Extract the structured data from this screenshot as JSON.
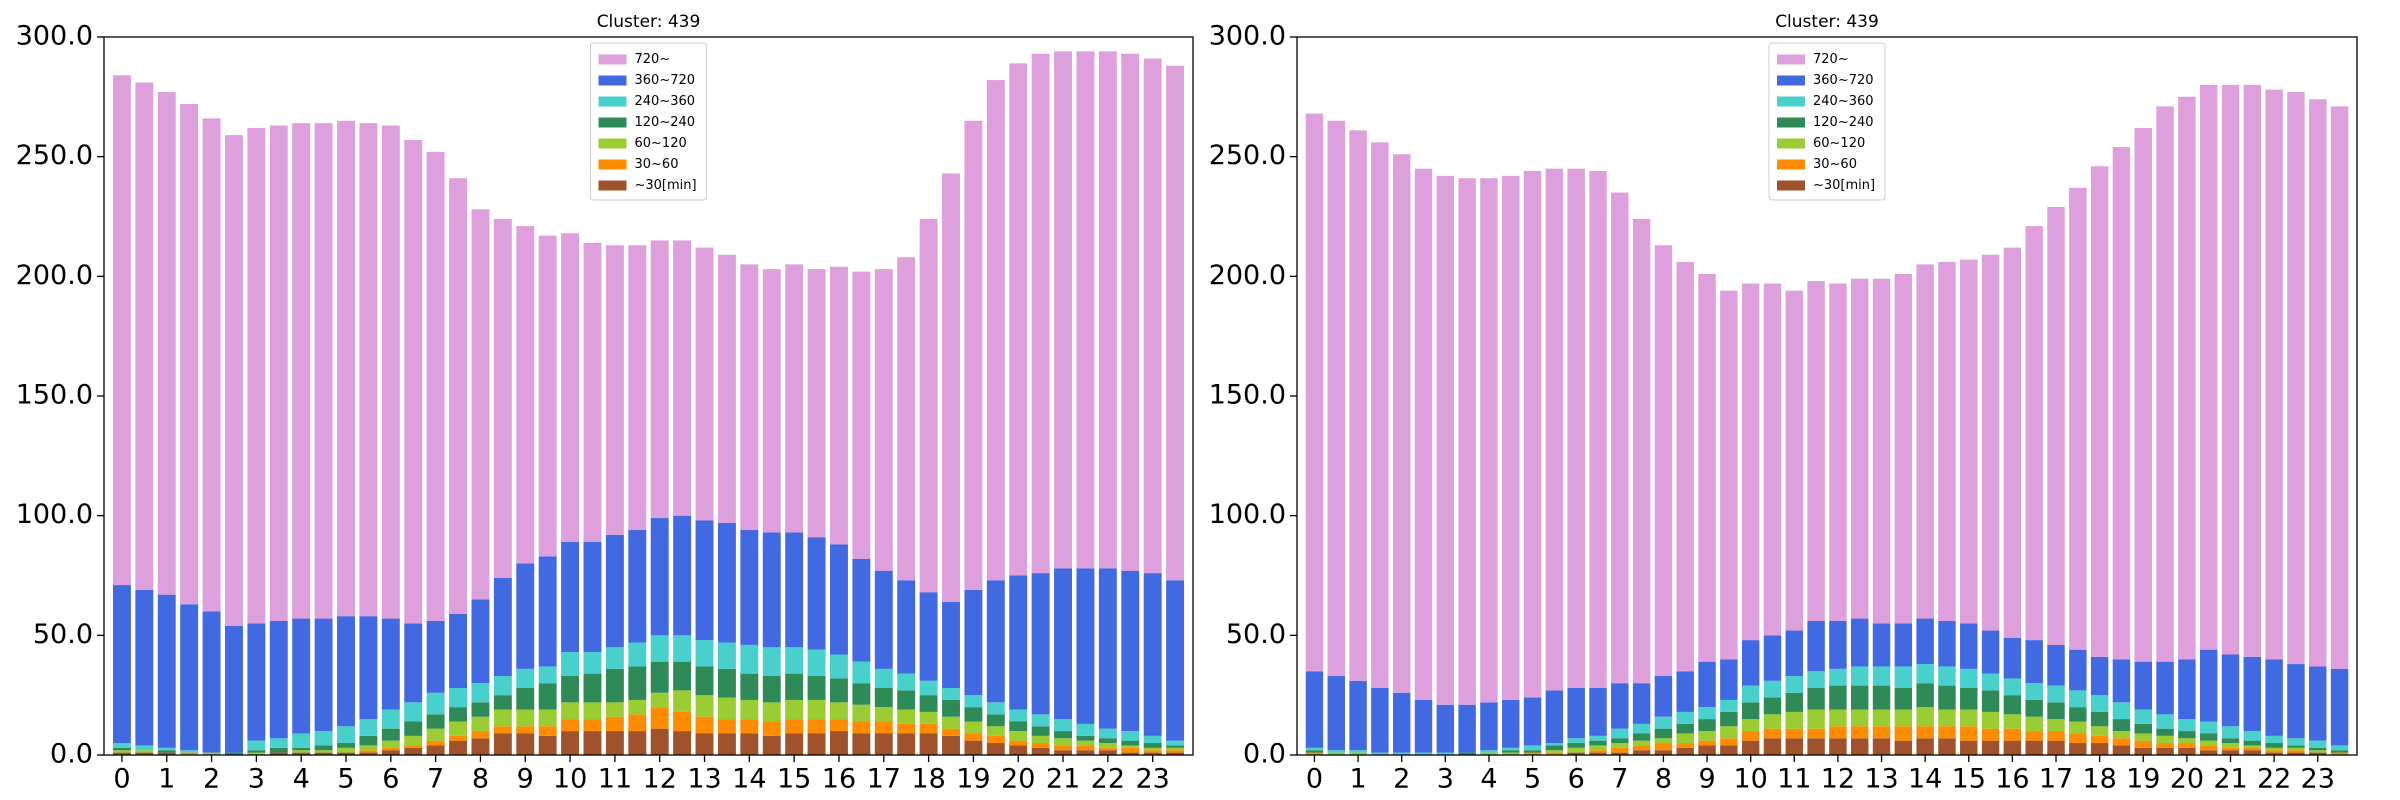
{
  "chart_data": [
    {
      "type": "bar",
      "stacked": true,
      "title": "Cluster: 439",
      "categories": [
        "0",
        null,
        "1",
        null,
        "2",
        null,
        "3",
        null,
        "4",
        null,
        "5",
        null,
        "6",
        null,
        "7",
        null,
        "8",
        null,
        "9",
        null,
        "10",
        null,
        "11",
        null,
        "12",
        null,
        "13",
        null,
        "14",
        null,
        "15",
        null,
        "16",
        null,
        "17",
        null,
        "18",
        null,
        "19",
        null,
        "20",
        null,
        "21",
        null,
        "22",
        null,
        "23",
        null
      ],
      "ylim": [
        0,
        300
      ],
      "yticks": [
        {
          "value": 0,
          "label": "0.0"
        },
        {
          "value": 50,
          "label": "50.0"
        },
        {
          "value": 100,
          "label": "100.0"
        },
        {
          "value": 150,
          "label": "150.0"
        },
        {
          "value": 200,
          "label": "200.0"
        },
        {
          "value": 250,
          "label": "250.0"
        },
        {
          "value": 300,
          "label": "300.0"
        }
      ],
      "legend": "upper center",
      "series": [
        {
          "name": "~30[min]",
          "color": "#a0522d",
          "values": [
            1,
            1,
            1,
            0,
            0,
            0,
            0,
            1,
            1,
            1,
            1,
            1,
            2,
            3,
            4,
            6,
            7,
            9,
            9,
            8,
            10,
            10,
            10,
            10,
            11,
            10,
            9,
            9,
            9,
            8,
            9,
            9,
            10,
            9,
            9,
            9,
            9,
            8,
            6,
            5,
            4,
            3,
            2,
            2,
            2,
            1,
            1,
            1
          ]
        },
        {
          "name": "30~60",
          "color": "#ff8c00",
          "values": [
            0,
            0,
            0,
            1,
            0,
            0,
            0,
            0,
            0,
            0,
            0,
            1,
            1,
            1,
            2,
            2,
            3,
            3,
            3,
            4,
            5,
            5,
            6,
            7,
            9,
            8,
            7,
            6,
            6,
            6,
            6,
            6,
            5,
            5,
            5,
            4,
            4,
            3,
            3,
            3,
            2,
            2,
            2,
            2,
            1,
            2,
            1,
            1
          ]
        },
        {
          "name": "60~120",
          "color": "#9acd32",
          "values": [
            1,
            1,
            0,
            0,
            1,
            0,
            1,
            0,
            1,
            1,
            2,
            2,
            3,
            4,
            5,
            6,
            6,
            7,
            7,
            7,
            7,
            7,
            6,
            6,
            6,
            9,
            9,
            9,
            8,
            8,
            8,
            8,
            7,
            7,
            6,
            6,
            5,
            5,
            5,
            4,
            4,
            3,
            3,
            2,
            2,
            1,
            1,
            1
          ]
        },
        {
          "name": "120~240",
          "color": "#2e8b57",
          "values": [
            1,
            0,
            1,
            0,
            0,
            1,
            1,
            2,
            1,
            2,
            2,
            4,
            5,
            6,
            6,
            6,
            6,
            6,
            9,
            11,
            11,
            12,
            14,
            14,
            13,
            12,
            12,
            12,
            11,
            11,
            11,
            10,
            10,
            9,
            8,
            8,
            7,
            7,
            6,
            5,
            4,
            4,
            3,
            2,
            2,
            2,
            2,
            1
          ]
        },
        {
          "name": "240~360",
          "color": "#48d1cc",
          "values": [
            2,
            2,
            1,
            1,
            0,
            0,
            4,
            4,
            6,
            6,
            7,
            7,
            8,
            8,
            9,
            8,
            8,
            8,
            8,
            7,
            10,
            9,
            9,
            10,
            11,
            11,
            11,
            11,
            12,
            12,
            11,
            11,
            10,
            9,
            8,
            7,
            6,
            5,
            5,
            5,
            5,
            5,
            5,
            5,
            4,
            4,
            3,
            2
          ]
        },
        {
          "name": "360~720",
          "color": "#4169e1",
          "values": [
            66,
            65,
            64,
            61,
            59,
            53,
            49,
            49,
            48,
            47,
            46,
            43,
            38,
            33,
            30,
            31,
            35,
            41,
            44,
            46,
            46,
            46,
            47,
            47,
            49,
            50,
            50,
            50,
            48,
            48,
            48,
            47,
            46,
            43,
            41,
            39,
            37,
            36,
            44,
            51,
            56,
            59,
            63,
            65,
            67,
            67,
            68,
            67
          ]
        },
        {
          "name": "720~",
          "color": "#dda0dd",
          "values": [
            213,
            212,
            210,
            209,
            206,
            205,
            207,
            207,
            207,
            207,
            207,
            206,
            206,
            202,
            196,
            182,
            163,
            150,
            141,
            134,
            129,
            125,
            121,
            119,
            116,
            115,
            114,
            112,
            111,
            110,
            112,
            112,
            116,
            120,
            126,
            135,
            156,
            179,
            196,
            209,
            214,
            217,
            216,
            216,
            216,
            216,
            215,
            215
          ]
        }
      ]
    },
    {
      "type": "bar",
      "stacked": true,
      "title": "Cluster: 439",
      "categories": [
        "0",
        null,
        "1",
        null,
        "2",
        null,
        "3",
        null,
        "4",
        null,
        "5",
        null,
        "6",
        null,
        "7",
        null,
        "8",
        null,
        "9",
        null,
        "10",
        null,
        "11",
        null,
        "12",
        null,
        "13",
        null,
        "14",
        null,
        "15",
        null,
        "16",
        null,
        "17",
        null,
        "18",
        null,
        "19",
        null,
        "20",
        null,
        "21",
        null,
        "22",
        null,
        "23",
        null
      ],
      "ylim": [
        0,
        300
      ],
      "yticks": [
        {
          "value": 0,
          "label": "0.0"
        },
        {
          "value": 50,
          "label": "50.0"
        },
        {
          "value": 100,
          "label": "100.0"
        },
        {
          "value": 150,
          "label": "150.0"
        },
        {
          "value": 200,
          "label": "200.0"
        },
        {
          "value": 250,
          "label": "250.0"
        },
        {
          "value": 300,
          "label": "300.0"
        }
      ],
      "legend": "upper center",
      "series": [
        {
          "name": "~30[min]",
          "color": "#a0522d",
          "values": [
            0,
            0,
            0,
            0,
            0,
            0,
            0,
            0,
            0,
            0,
            0,
            0,
            1,
            1,
            1,
            2,
            2,
            3,
            4,
            4,
            6,
            7,
            7,
            7,
            7,
            7,
            7,
            6,
            7,
            7,
            6,
            6,
            6,
            6,
            6,
            5,
            5,
            4,
            3,
            3,
            3,
            2,
            2,
            2,
            1,
            1,
            1,
            0
          ]
        },
        {
          "name": "30~60",
          "color": "#ff8c00",
          "values": [
            1,
            0,
            0,
            0,
            0,
            0,
            0,
            0,
            0,
            0,
            1,
            1,
            0,
            1,
            2,
            2,
            3,
            2,
            2,
            3,
            4,
            4,
            4,
            4,
            5,
            5,
            5,
            6,
            5,
            5,
            6,
            5,
            5,
            4,
            4,
            4,
            3,
            3,
            3,
            2,
            2,
            2,
            1,
            1,
            1,
            1,
            0,
            1
          ]
        },
        {
          "name": "60~120",
          "color": "#9acd32",
          "values": [
            0,
            1,
            1,
            0,
            0,
            0,
            0,
            0,
            1,
            1,
            0,
            1,
            2,
            2,
            2,
            2,
            2,
            4,
            4,
            5,
            5,
            6,
            7,
            8,
            7,
            7,
            7,
            7,
            8,
            7,
            7,
            7,
            6,
            6,
            5,
            5,
            4,
            3,
            3,
            3,
            2,
            2,
            2,
            1,
            1,
            1,
            1,
            0
          ]
        },
        {
          "name": "120~240",
          "color": "#2e8b57",
          "values": [
            1,
            0,
            0,
            0,
            0,
            0,
            0,
            1,
            0,
            1,
            1,
            2,
            2,
            2,
            2,
            3,
            4,
            4,
            5,
            6,
            7,
            7,
            8,
            9,
            10,
            10,
            10,
            9,
            10,
            10,
            9,
            9,
            8,
            7,
            7,
            6,
            6,
            5,
            4,
            3,
            3,
            3,
            2,
            2,
            2,
            1,
            1,
            1
          ]
        },
        {
          "name": "240~360",
          "color": "#48d1cc",
          "values": [
            1,
            1,
            1,
            1,
            1,
            1,
            1,
            0,
            1,
            1,
            2,
            1,
            2,
            2,
            4,
            4,
            5,
            5,
            5,
            5,
            7,
            7,
            7,
            7,
            7,
            8,
            8,
            9,
            8,
            8,
            8,
            7,
            7,
            7,
            7,
            7,
            7,
            7,
            6,
            6,
            5,
            5,
            5,
            4,
            3,
            3,
            3,
            2
          ]
        },
        {
          "name": "360~720",
          "color": "#4169e1",
          "values": [
            32,
            31,
            29,
            27,
            25,
            22,
            20,
            20,
            20,
            20,
            20,
            22,
            21,
            20,
            19,
            17,
            17,
            17,
            19,
            17,
            19,
            19,
            19,
            21,
            20,
            20,
            18,
            18,
            19,
            19,
            19,
            18,
            17,
            18,
            17,
            17,
            16,
            18,
            20,
            22,
            25,
            30,
            30,
            31,
            32,
            31,
            31,
            32
          ]
        },
        {
          "name": "720~",
          "color": "#dda0dd",
          "values": [
            233,
            232,
            230,
            228,
            225,
            222,
            221,
            220,
            219,
            219,
            220,
            218,
            217,
            216,
            205,
            194,
            180,
            171,
            162,
            154,
            149,
            147,
            142,
            142,
            141,
            142,
            144,
            146,
            148,
            150,
            152,
            157,
            163,
            173,
            183,
            193,
            205,
            214,
            223,
            232,
            235,
            236,
            238,
            239,
            238,
            239,
            237,
            235
          ]
        }
      ]
    }
  ]
}
